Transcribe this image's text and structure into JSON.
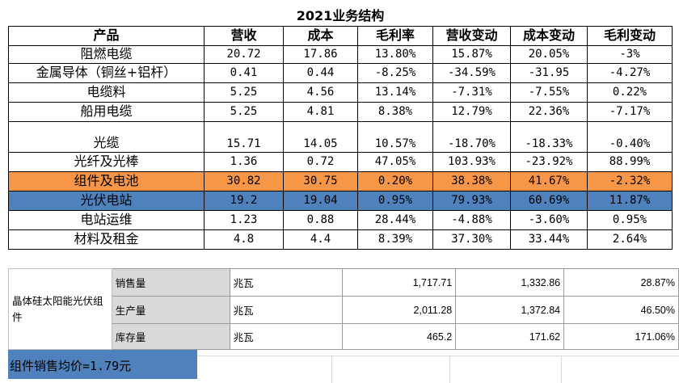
{
  "title": "2021业务结构",
  "headers": [
    "产品",
    "营收",
    "成本",
    "毛利率",
    "营收变动",
    "成本变动",
    "毛利变动"
  ],
  "rows": [
    [
      "阻燃电缆",
      "20.72",
      "17.86",
      "13.80%",
      "15.87%",
      "20.05%",
      "-3%"
    ],
    [
      "金属导体（铜丝+铝杆）",
      "0.41",
      "0.44",
      "-8.25%",
      "-34.59%",
      "-31.95",
      "-4.27%"
    ],
    [
      "电缆料",
      "5.25",
      "4.56",
      "13.14%",
      "-7.31%",
      "-7.55%",
      "0.22%"
    ],
    [
      "船用电缆",
      "5.25",
      "4.81",
      "8.38%",
      "12.79%",
      "22.36%",
      "-7.17%"
    ],
    [
      "光缆",
      "15.71",
      "14.05",
      "10.57%",
      "-18.70%",
      "-18.33%",
      "-0.40%"
    ],
    [
      "光纤及光棒",
      "1.36",
      "0.72",
      "47.05%",
      "103.93%",
      "-23.92%",
      "88.99%"
    ],
    [
      "组件及电池",
      "30.82",
      "30.75",
      "0.20%",
      "38.38%",
      "41.67%",
      "-2.32%"
    ],
    [
      "光伏电站",
      "19.2",
      "19.04",
      "0.95%",
      "79.93%",
      "60.69%",
      "11.87%"
    ],
    [
      "电站运维",
      "1.23",
      "0.88",
      "28.44%",
      "-4.88%",
      "-3.60%",
      "0.95%"
    ],
    [
      "材料及租金",
      "4.8",
      "4.4",
      "8.39%",
      "37.30%",
      "33.44%",
      "2.64%"
    ]
  ],
  "highlight_colors": {
    "组件及电池": "#f79646",
    "光伏电站": "#4f81bd"
  },
  "sub_table": {
    "group_label": "晶体硅太阳能光伏组件",
    "rows": [
      [
        "销售量",
        "兆瓦",
        "1,717.71",
        "1,332.86",
        "28.87%"
      ],
      [
        "生产量",
        "兆瓦",
        "2,011.28",
        "1,372.84",
        "46.50%"
      ],
      [
        "库存量",
        "兆瓦",
        "465.2",
        "171.62",
        "171.06%"
      ]
    ]
  },
  "avg_price": "组件销售均价=1.79元"
}
